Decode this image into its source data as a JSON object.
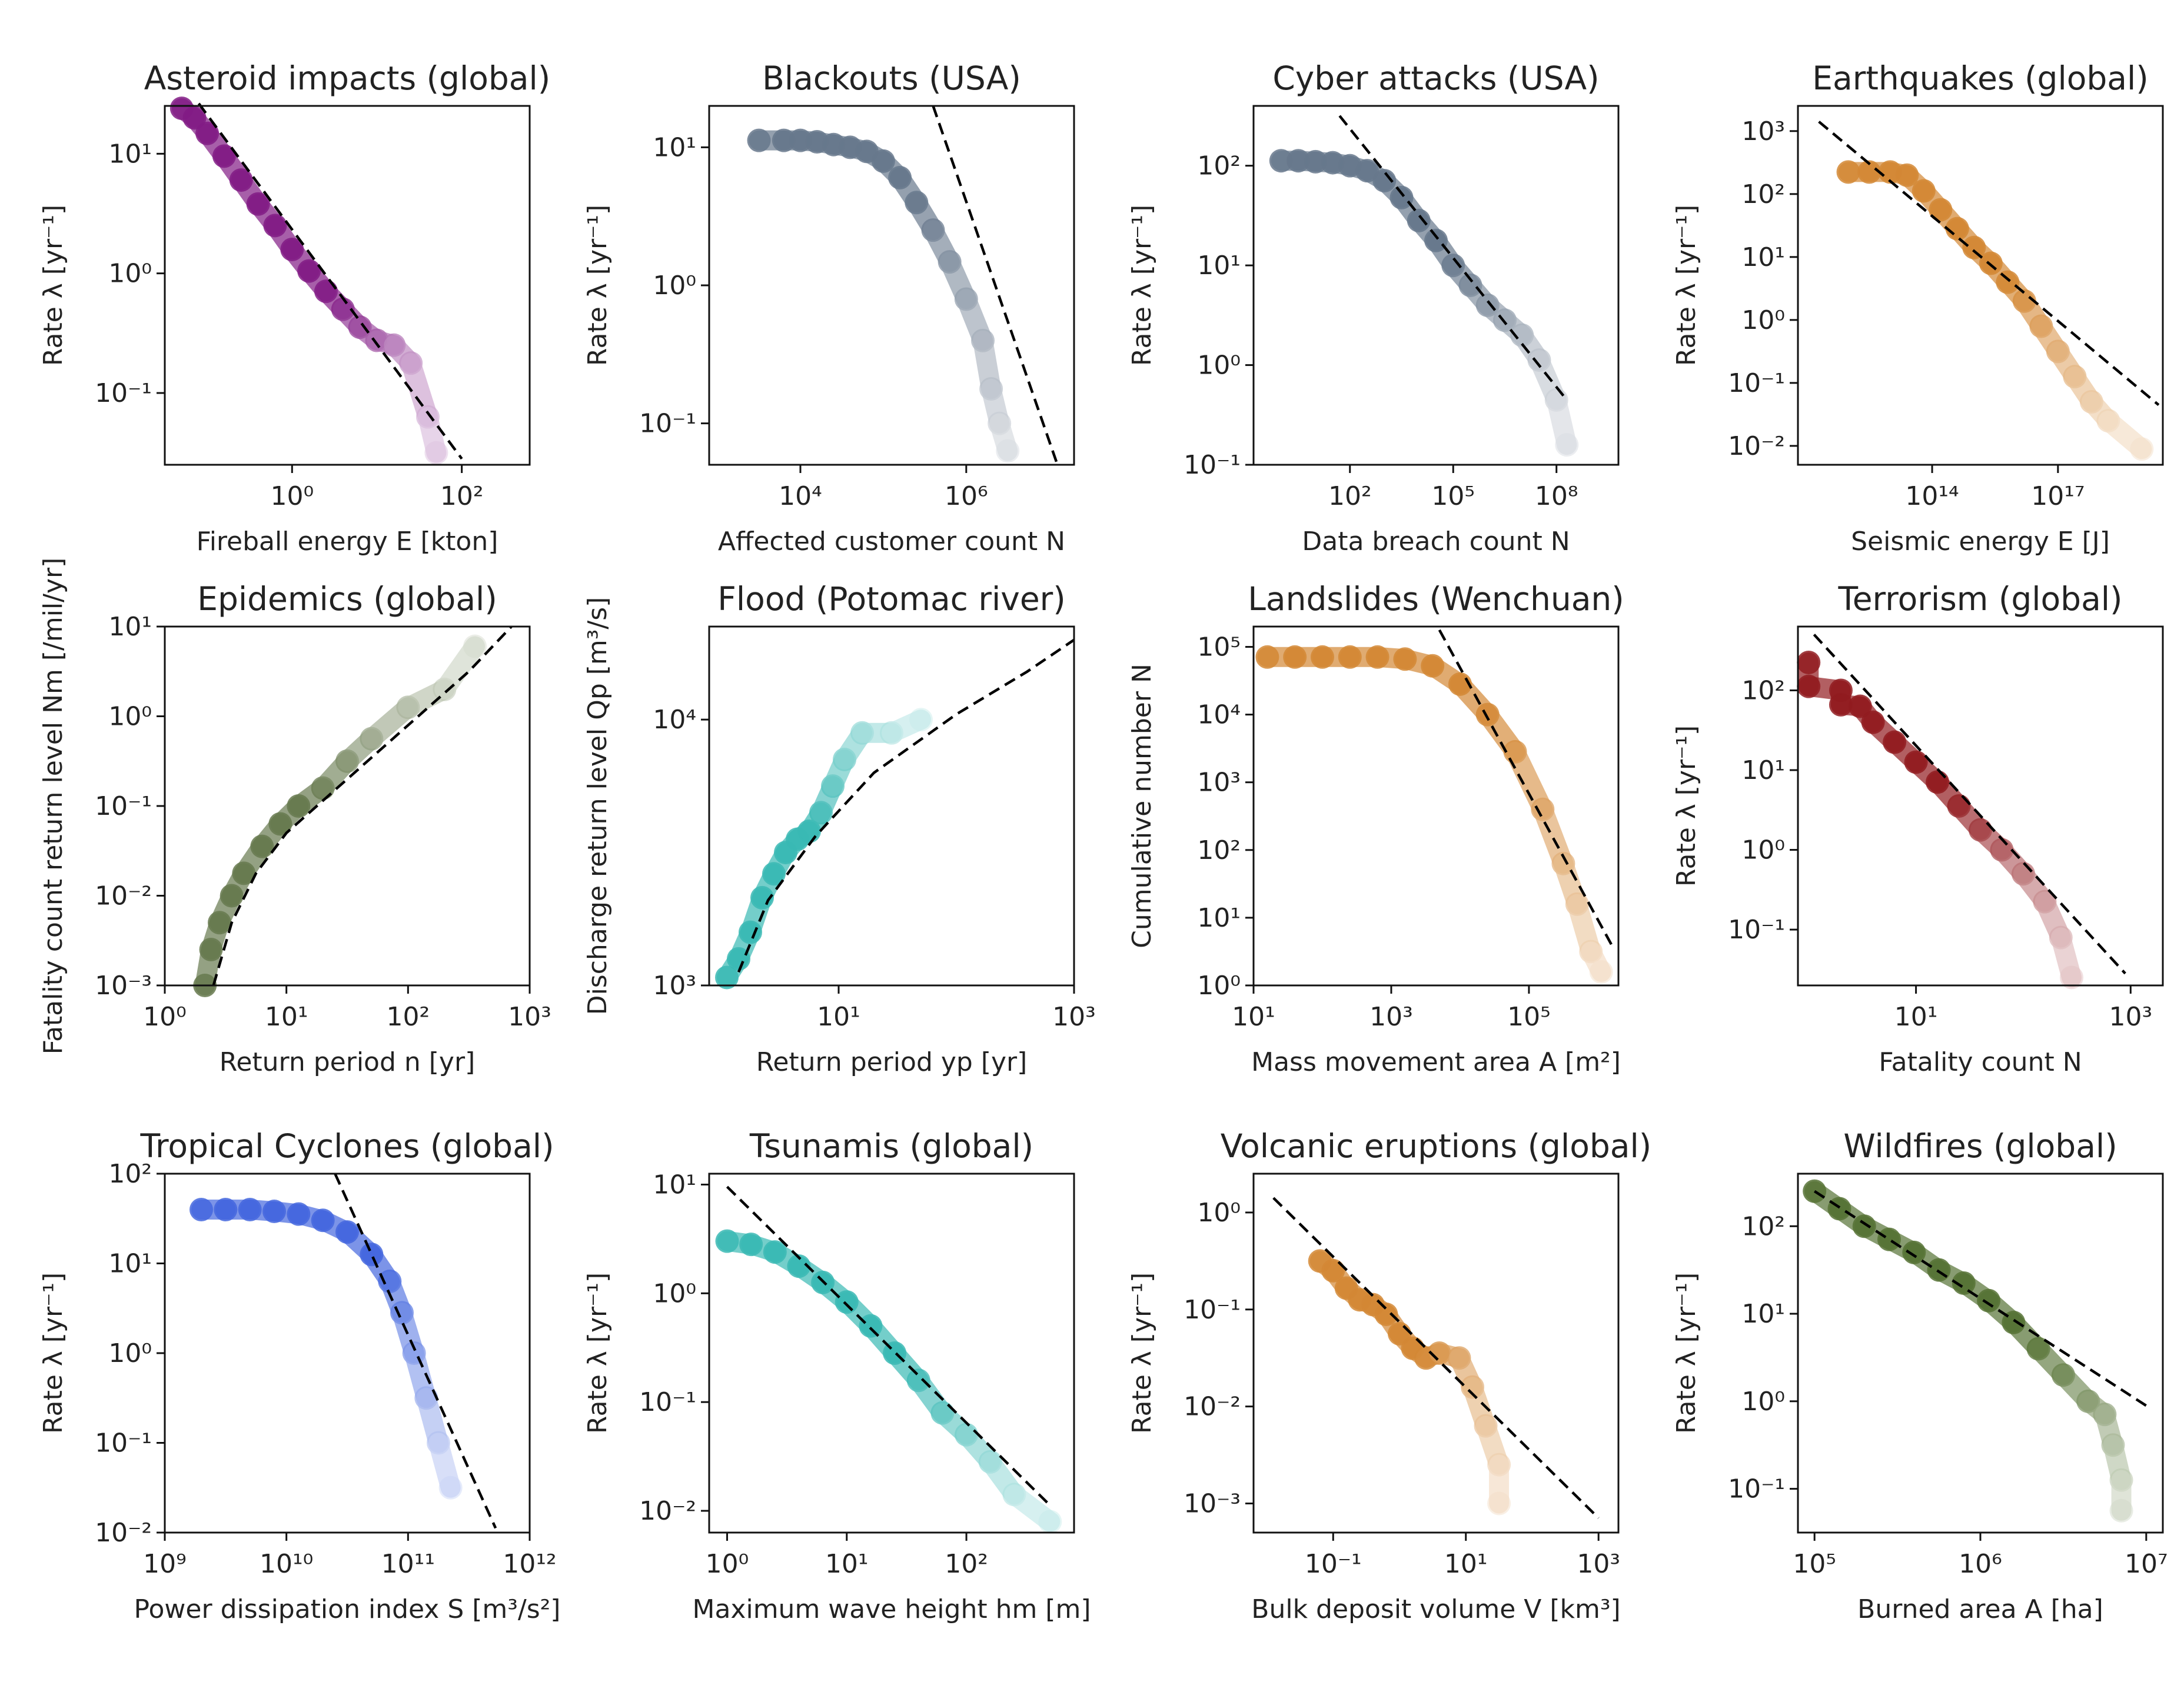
{
  "figure_title": "",
  "chart_data": [
    {
      "id": "asteroid",
      "type": "scatter",
      "title": "Asteroid impacts (global)",
      "xlabel": "Fireball energy E [kton]",
      "ylabel": "Rate λ [yr⁻¹]",
      "xlog": [
        -1.5,
        2.8
      ],
      "ylog": [
        -1.6,
        1.4
      ],
      "xticks": [
        0,
        2
      ],
      "yticks": [
        -1,
        0,
        1
      ],
      "color": "#7a0f7f",
      "fade": 0.1,
      "points": [
        [
          -1.3,
          1.38
        ],
        [
          -1.15,
          1.3
        ],
        [
          -1,
          1.17
        ],
        [
          -0.8,
          0.98
        ],
        [
          -0.6,
          0.78
        ],
        [
          -0.4,
          0.58
        ],
        [
          -0.2,
          0.4
        ],
        [
          0,
          0.2
        ],
        [
          0.2,
          0.02
        ],
        [
          0.4,
          -0.15
        ],
        [
          0.6,
          -0.3
        ],
        [
          0.8,
          -0.45
        ],
        [
          1.0,
          -0.56
        ],
        [
          1.2,
          -0.6
        ],
        [
          1.4,
          -0.75
        ],
        [
          1.6,
          -1.2
        ],
        [
          1.7,
          -1.5
        ]
      ],
      "fit": [
        [
          -1.1,
          1.42
        ],
        [
          2.0,
          -1.55
        ]
      ]
    },
    {
      "id": "blackouts",
      "type": "scatter",
      "title": "Blackouts (USA)",
      "xlabel": "Affected customer count N",
      "ylabel": "Rate λ [yr⁻¹]",
      "xlog": [
        2.9,
        7.3
      ],
      "ylog": [
        -1.3,
        1.3
      ],
      "xticks": [
        4,
        6
      ],
      "yticks": [
        -1,
        0,
        1
      ],
      "color": "#5f7186",
      "fade": 0.12,
      "points": [
        [
          3.5,
          1.05
        ],
        [
          3.8,
          1.05
        ],
        [
          4.0,
          1.05
        ],
        [
          4.2,
          1.04
        ],
        [
          4.4,
          1.02
        ],
        [
          4.6,
          1.0
        ],
        [
          4.8,
          0.97
        ],
        [
          5.0,
          0.9
        ],
        [
          5.2,
          0.78
        ],
        [
          5.4,
          0.6
        ],
        [
          5.6,
          0.4
        ],
        [
          5.8,
          0.17
        ],
        [
          6.0,
          -0.1
        ],
        [
          6.2,
          -0.4
        ],
        [
          6.3,
          -0.75
        ],
        [
          6.4,
          -1.0
        ],
        [
          6.5,
          -1.2
        ]
      ],
      "fit": [
        [
          5.6,
          1.3
        ],
        [
          7.1,
          -1.3
        ]
      ]
    },
    {
      "id": "cyber",
      "type": "scatter",
      "title": "Cyber attacks (USA)",
      "xlabel": "Data breach count N",
      "ylabel": "Rate λ [yr⁻¹]",
      "xlog": [
        -0.8,
        9.8
      ],
      "ylog": [
        -1.0,
        2.6
      ],
      "xticks": [
        2,
        5,
        8
      ],
      "yticks": [
        -1,
        0,
        1,
        2
      ],
      "color": "#5f7186",
      "fade": 0.12,
      "points": [
        [
          0,
          2.05
        ],
        [
          0.5,
          2.05
        ],
        [
          1,
          2.04
        ],
        [
          1.5,
          2.03
        ],
        [
          2,
          2.0
        ],
        [
          2.5,
          1.95
        ],
        [
          3,
          1.85
        ],
        [
          3.5,
          1.68
        ],
        [
          4,
          1.45
        ],
        [
          4.5,
          1.25
        ],
        [
          5,
          1.0
        ],
        [
          5.5,
          0.8
        ],
        [
          6,
          0.6
        ],
        [
          6.5,
          0.45
        ],
        [
          7,
          0.3
        ],
        [
          7.5,
          0.05
        ],
        [
          8,
          -0.35
        ],
        [
          8.3,
          -0.8
        ]
      ],
      "fit": [
        [
          1.7,
          2.5
        ],
        [
          8.3,
          -0.35
        ]
      ]
    },
    {
      "id": "earthquakes",
      "type": "scatter",
      "title": "Earthquakes (global)",
      "xlabel": "Seismic energy E [J]",
      "ylabel": "Rate λ [yr⁻¹]",
      "xlog": [
        10.8,
        19.5
      ],
      "ylog": [
        -2.3,
        3.4
      ],
      "xticks": [
        14,
        17
      ],
      "yticks": [
        -2,
        -1,
        0,
        1,
        2,
        3
      ],
      "color": "#d1822a",
      "fade": 0.12,
      "points": [
        [
          12,
          2.35
        ],
        [
          12.5,
          2.35
        ],
        [
          13,
          2.35
        ],
        [
          13.4,
          2.3
        ],
        [
          13.8,
          2.05
        ],
        [
          14.2,
          1.75
        ],
        [
          14.6,
          1.45
        ],
        [
          15,
          1.15
        ],
        [
          15.4,
          0.9
        ],
        [
          15.8,
          0.6
        ],
        [
          16.2,
          0.3
        ],
        [
          16.6,
          -0.1
        ],
        [
          17,
          -0.5
        ],
        [
          17.4,
          -0.9
        ],
        [
          17.8,
          -1.3
        ],
        [
          18.2,
          -1.6
        ],
        [
          19,
          -2.05
        ]
      ],
      "fit": [
        [
          11.3,
          3.15
        ],
        [
          19.4,
          -1.35
        ]
      ]
    },
    {
      "id": "epidemics",
      "type": "scatter",
      "title": "Epidemics (global)",
      "xlabel": "Return period n [yr]",
      "ylabel": "Fatality count return level Nm [/mil/yr]",
      "xlog": [
        0,
        3
      ],
      "ylog": [
        -3,
        1
      ],
      "xticks": [
        0,
        1,
        2,
        3
      ],
      "yticks": [
        -3,
        -2,
        -1,
        0,
        1
      ],
      "color": "#5e7245",
      "fade": 0.12,
      "rising": true,
      "points": [
        [
          0.33,
          -3
        ],
        [
          0.38,
          -2.6
        ],
        [
          0.45,
          -2.3
        ],
        [
          0.55,
          -2.0
        ],
        [
          0.65,
          -1.75
        ],
        [
          0.8,
          -1.45
        ],
        [
          0.95,
          -1.2
        ],
        [
          1.1,
          -1.0
        ],
        [
          1.3,
          -0.8
        ],
        [
          1.5,
          -0.5
        ],
        [
          1.7,
          -0.25
        ],
        [
          2.0,
          0.1
        ],
        [
          2.3,
          0.3
        ],
        [
          2.55,
          0.78
        ]
      ],
      "fit": [
        [
          0.4,
          -3.0
        ],
        [
          0.55,
          -2.3
        ],
        [
          0.75,
          -1.75
        ],
        [
          1,
          -1.3
        ],
        [
          1.5,
          -0.7
        ],
        [
          2,
          -0.1
        ],
        [
          2.5,
          0.5
        ],
        [
          2.85,
          1.0
        ]
      ]
    },
    {
      "id": "flood",
      "type": "scatter",
      "title": "Flood (Potomac river)",
      "xlabel": "Return period yp [yr]",
      "ylabel": "Discharge return level Qp [m³/s]",
      "xlog": [
        -0.1,
        3
      ],
      "ylog": [
        3,
        4.35
      ],
      "xticks": [
        1,
        3
      ],
      "yticks": [
        3,
        4
      ],
      "color": "#2fb5b0",
      "fade": 0.12,
      "rising": true,
      "points": [
        [
          0.05,
          3.03
        ],
        [
          0.15,
          3.1
        ],
        [
          0.25,
          3.2
        ],
        [
          0.35,
          3.33
        ],
        [
          0.45,
          3.42
        ],
        [
          0.55,
          3.5
        ],
        [
          0.65,
          3.55
        ],
        [
          0.75,
          3.58
        ],
        [
          0.85,
          3.65
        ],
        [
          0.95,
          3.75
        ],
        [
          1.05,
          3.85
        ],
        [
          1.2,
          3.95
        ],
        [
          1.45,
          3.95
        ],
        [
          1.7,
          4.0
        ]
      ],
      "fit": [
        [
          0.15,
          3.05
        ],
        [
          0.4,
          3.32
        ],
        [
          0.8,
          3.56
        ],
        [
          1.3,
          3.8
        ],
        [
          2,
          4.02
        ],
        [
          2.6,
          4.18
        ],
        [
          3,
          4.3
        ]
      ]
    },
    {
      "id": "landslides",
      "type": "scatter",
      "title": "Landslides (Wenchuan)",
      "xlabel": "Mass movement area A [m²]",
      "ylabel": "Cumulative number N",
      "xlog": [
        1,
        6.3
      ],
      "ylog": [
        0,
        5.3
      ],
      "xticks": [
        1,
        3,
        5
      ],
      "yticks": [
        0,
        1,
        2,
        3,
        4,
        5
      ],
      "color": "#d1822a",
      "fade": 0.12,
      "points": [
        [
          1.2,
          4.85
        ],
        [
          1.6,
          4.85
        ],
        [
          2,
          4.85
        ],
        [
          2.4,
          4.85
        ],
        [
          2.8,
          4.85
        ],
        [
          3.2,
          4.82
        ],
        [
          3.6,
          4.72
        ],
        [
          4.0,
          4.45
        ],
        [
          4.4,
          4.0
        ],
        [
          4.8,
          3.45
        ],
        [
          5.2,
          2.6
        ],
        [
          5.5,
          1.8
        ],
        [
          5.7,
          1.2
        ],
        [
          5.9,
          0.5
        ],
        [
          6.05,
          0.2
        ]
      ],
      "fit": [
        [
          3.7,
          5.25
        ],
        [
          6.2,
          0.6
        ]
      ]
    },
    {
      "id": "terrorism",
      "type": "scatter",
      "title": "Terrorism (global)",
      "xlabel": "Fatality count N",
      "ylabel": "Rate λ [yr⁻¹]",
      "xlog": [
        -0.1,
        3.3
      ],
      "ylog": [
        -1.7,
        2.8
      ],
      "xticks": [
        1,
        3
      ],
      "yticks": [
        -1,
        0,
        1,
        2
      ],
      "color": "#8b0f14",
      "fade": 0.12,
      "points": [
        [
          0,
          2.35
        ],
        [
          0,
          2.05
        ],
        [
          0.3,
          2.0
        ],
        [
          0.3,
          1.82
        ],
        [
          0.48,
          1.8
        ],
        [
          0.6,
          1.6
        ],
        [
          0.8,
          1.35
        ],
        [
          1.0,
          1.1
        ],
        [
          1.2,
          0.85
        ],
        [
          1.4,
          0.55
        ],
        [
          1.6,
          0.25
        ],
        [
          1.8,
          0.0
        ],
        [
          2.0,
          -0.3
        ],
        [
          2.2,
          -0.65
        ],
        [
          2.35,
          -1.1
        ],
        [
          2.45,
          -1.6
        ]
      ],
      "fit": [
        [
          0.05,
          2.7
        ],
        [
          2.95,
          -1.55
        ]
      ]
    },
    {
      "id": "cyclones",
      "type": "scatter",
      "title": "Tropical Cyclones (global)",
      "xlabel": "Power dissipation index S [m³/s²]",
      "ylabel": "Rate λ [yr⁻¹]",
      "xlog": [
        9,
        12
      ],
      "ylog": [
        -2,
        2
      ],
      "xticks": [
        9,
        10,
        11,
        12
      ],
      "yticks": [
        -2,
        -1,
        0,
        1,
        2
      ],
      "color": "#3a5fdc",
      "fade": 0.12,
      "points": [
        [
          9.3,
          1.6
        ],
        [
          9.5,
          1.6
        ],
        [
          9.7,
          1.6
        ],
        [
          9.9,
          1.58
        ],
        [
          10.1,
          1.55
        ],
        [
          10.3,
          1.48
        ],
        [
          10.5,
          1.35
        ],
        [
          10.7,
          1.1
        ],
        [
          10.85,
          0.8
        ],
        [
          10.95,
          0.45
        ],
        [
          11.05,
          0.0
        ],
        [
          11.15,
          -0.5
        ],
        [
          11.25,
          -1.0
        ],
        [
          11.35,
          -1.5
        ]
      ],
      "fit": [
        [
          10.4,
          2.0
        ],
        [
          11.72,
          -1.95
        ]
      ]
    },
    {
      "id": "tsunamis",
      "type": "scatter",
      "title": "Tsunamis (global)",
      "xlabel": "Maximum wave height hm [m]",
      "ylabel": "Rate λ [yr⁻¹]",
      "xlog": [
        -0.15,
        2.9
      ],
      "ylog": [
        -2.2,
        1.1
      ],
      "xticks": [
        0,
        1,
        2
      ],
      "yticks": [
        -2,
        -1,
        0,
        1
      ],
      "color": "#2fb5b0",
      "fade": 0.12,
      "points": [
        [
          0,
          0.48
        ],
        [
          0.2,
          0.45
        ],
        [
          0.4,
          0.38
        ],
        [
          0.6,
          0.25
        ],
        [
          0.8,
          0.1
        ],
        [
          1.0,
          -0.08
        ],
        [
          1.2,
          -0.3
        ],
        [
          1.4,
          -0.55
        ],
        [
          1.6,
          -0.8
        ],
        [
          1.8,
          -1.1
        ],
        [
          2.0,
          -1.3
        ],
        [
          2.2,
          -1.55
        ],
        [
          2.4,
          -1.85
        ],
        [
          2.7,
          -2.1
        ]
      ],
      "fit": [
        [
          0.0,
          0.98
        ],
        [
          2.7,
          -1.95
        ]
      ]
    },
    {
      "id": "volcanic",
      "type": "scatter",
      "title": "Volcanic eruptions (global)",
      "xlabel": "Bulk deposit volume V [km³]",
      "ylabel": "Rate λ [yr⁻¹]",
      "xlog": [
        -2.2,
        3.3
      ],
      "ylog": [
        -3.3,
        0.4
      ],
      "xticks": [
        -1,
        1,
        3
      ],
      "yticks": [
        -3,
        -2,
        -1,
        0
      ],
      "color": "#d1822a",
      "fade": 0.12,
      "points": [
        [
          -1.2,
          -0.5
        ],
        [
          -1,
          -0.6
        ],
        [
          -0.8,
          -0.78
        ],
        [
          -0.6,
          -0.9
        ],
        [
          -0.4,
          -0.95
        ],
        [
          -0.2,
          -1.05
        ],
        [
          0,
          -1.25
        ],
        [
          0.2,
          -1.4
        ],
        [
          0.4,
          -1.5
        ],
        [
          0.6,
          -1.45
        ],
        [
          0.9,
          -1.5
        ],
        [
          1.1,
          -1.8
        ],
        [
          1.3,
          -2.2
        ],
        [
          1.5,
          -2.6
        ],
        [
          1.5,
          -3.0
        ]
      ],
      "fit": [
        [
          -1.9,
          0.15
        ],
        [
          3.0,
          -3.15
        ]
      ]
    },
    {
      "id": "wildfires",
      "type": "scatter",
      "title": "Wildfires (global)",
      "xlabel": "Burned area A [ha]",
      "ylabel": "Rate λ [yr⁻¹]",
      "xlog": [
        4.9,
        7.1
      ],
      "ylog": [
        -1.5,
        2.6
      ],
      "xticks": [
        5,
        6,
        7
      ],
      "yticks": [
        -1,
        0,
        1,
        2
      ],
      "color": "#4d6b2a",
      "fade": 0.12,
      "points": [
        [
          5,
          2.4
        ],
        [
          5.15,
          2.2
        ],
        [
          5.3,
          2.0
        ],
        [
          5.45,
          1.85
        ],
        [
          5.6,
          1.7
        ],
        [
          5.75,
          1.5
        ],
        [
          5.9,
          1.35
        ],
        [
          6.05,
          1.15
        ],
        [
          6.2,
          0.9
        ],
        [
          6.35,
          0.6
        ],
        [
          6.5,
          0.3
        ],
        [
          6.65,
          0.0
        ],
        [
          6.75,
          -0.15
        ],
        [
          6.8,
          -0.5
        ],
        [
          6.85,
          -0.9
        ],
        [
          6.85,
          -1.25
        ]
      ],
      "fit": [
        [
          5,
          2.4
        ],
        [
          7.0,
          -0.05
        ]
      ]
    }
  ]
}
